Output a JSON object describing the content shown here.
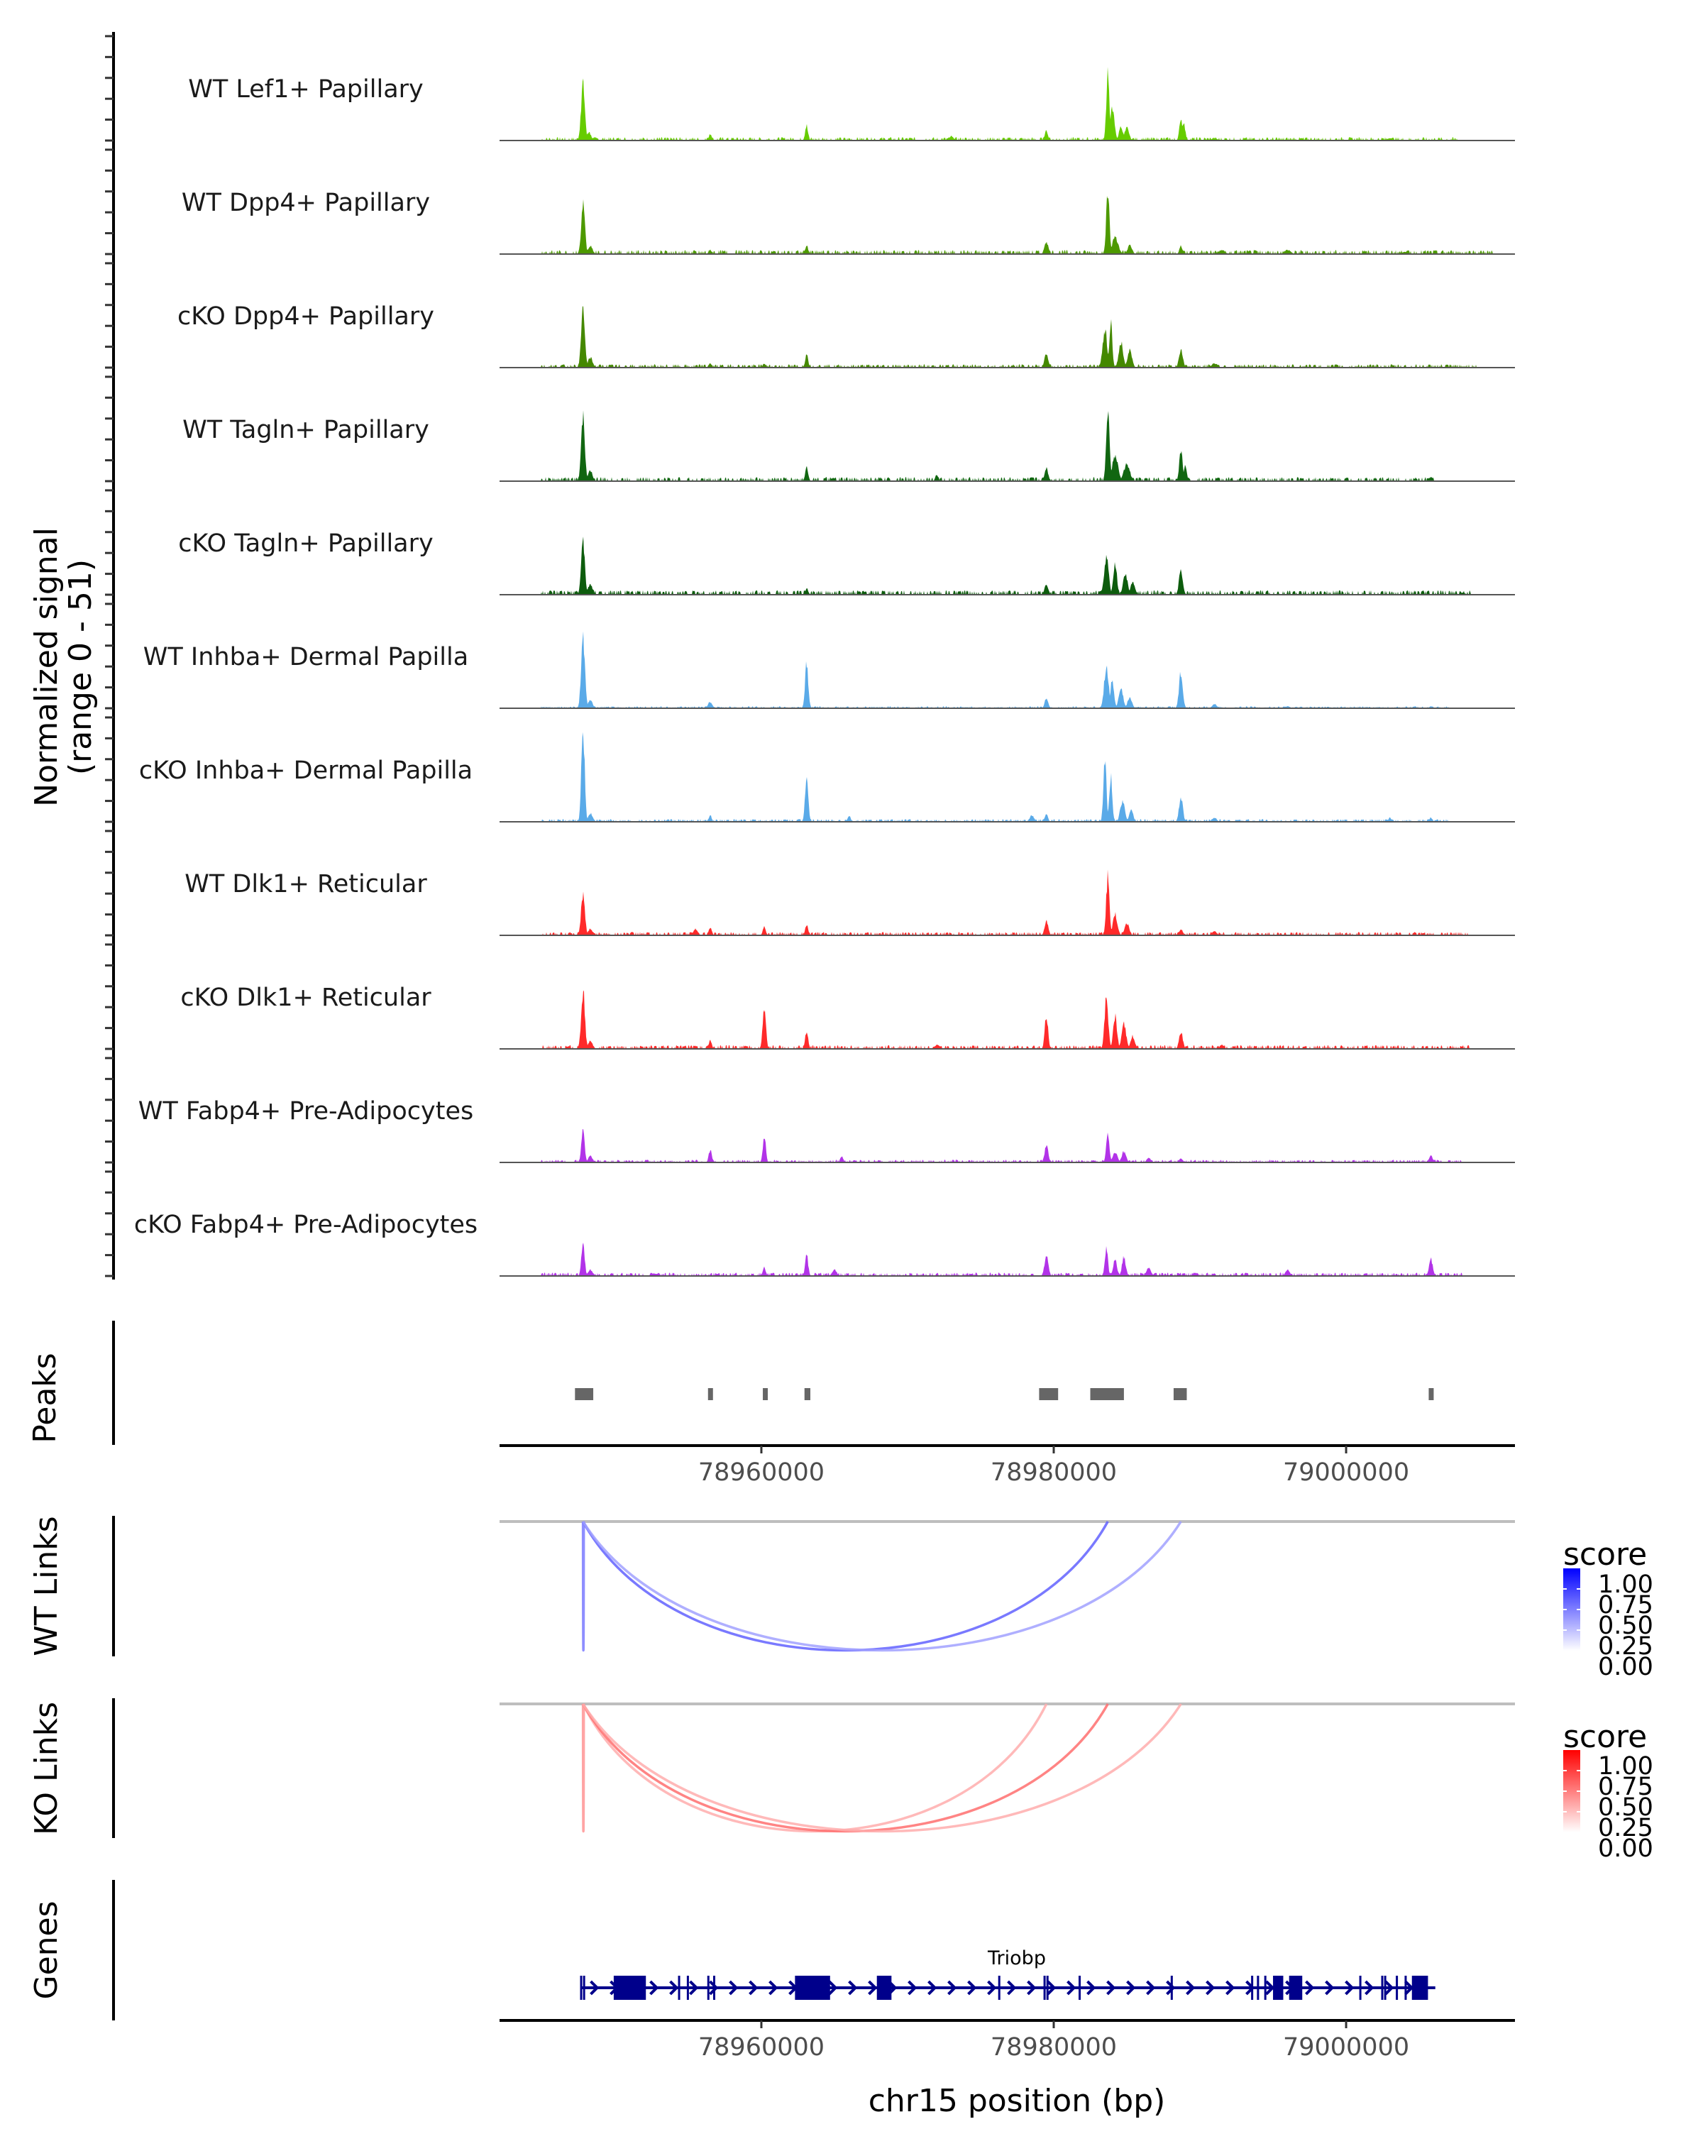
{
  "chart_data": {
    "type": "area",
    "title": "",
    "chromosome": "chr15",
    "xlabel": "chr15 position (bp)",
    "xlim": [
      78942090,
      79011550
    ],
    "xticks": [
      78960000,
      78980000,
      79000000
    ],
    "xtick_labels": [
      "78960000",
      "78980000",
      "79000000"
    ],
    "coverage": {
      "ylabel_line1": "Normalized signal",
      "ylabel_line2": "(range 0 - 51)",
      "ylim": [
        0,
        51
      ],
      "tick_step": 10,
      "tracks": [
        {
          "name": "WT Lef1+ Papillary",
          "color": "#66cc00",
          "peaks": [
            [
              78947800,
              27,
              250
            ],
            [
              78948200,
              4,
              300
            ],
            [
              78956500,
              3,
              200
            ],
            [
              78963100,
              7,
              200
            ],
            [
              78973000,
              2,
              300
            ],
            [
              78979500,
              5,
              200
            ],
            [
              78983700,
              33,
              200
            ],
            [
              78984000,
              16,
              300
            ],
            [
              78984600,
              7,
              250
            ],
            [
              78985000,
              6,
              300
            ],
            [
              78988700,
              11,
              200
            ],
            [
              78988900,
              8,
              200
            ],
            [
              78991000,
              1,
              400
            ],
            [
              79003000,
              1,
              400
            ]
          ],
          "noise": [
            [
              78945000,
              79008000,
              1
            ]
          ]
        },
        {
          "name": "WT Dpp4+ Papillary",
          "color": "#4d9900",
          "peaks": [
            [
              78947800,
              24,
              250
            ],
            [
              78948300,
              4,
              300
            ],
            [
              78956500,
              2,
              200
            ],
            [
              78963100,
              4,
              200
            ],
            [
              78979500,
              6,
              250
            ],
            [
              78983700,
              30,
              220
            ],
            [
              78984200,
              8,
              400
            ],
            [
              78985200,
              4,
              300
            ],
            [
              78988700,
              4,
              200
            ],
            [
              78991500,
              2,
              400
            ],
            [
              78996000,
              2,
              400
            ],
            [
              79004000,
              1,
              400
            ]
          ],
          "noise": [
            [
              78945000,
              79010000,
              1.2
            ]
          ]
        },
        {
          "name": "cKO Dpp4+ Papillary",
          "color": "#448800",
          "peaks": [
            [
              78947800,
              28,
              250
            ],
            [
              78948300,
              5,
              300
            ],
            [
              78956500,
              2,
              200
            ],
            [
              78960200,
              2,
              200
            ],
            [
              78963100,
              6,
              200
            ],
            [
              78979500,
              7,
              250
            ],
            [
              78983500,
              18,
              300
            ],
            [
              78983900,
              22,
              200
            ],
            [
              78984600,
              12,
              300
            ],
            [
              78985200,
              8,
              300
            ],
            [
              78988700,
              9,
              250
            ],
            [
              78991000,
              2,
              400
            ]
          ],
          "noise": [
            [
              78945000,
              79009000,
              1
            ]
          ]
        },
        {
          "name": "WT Tagln+ Papillary",
          "color": "#116611",
          "peaks": [
            [
              78947800,
              30,
              250
            ],
            [
              78948300,
              5,
              300
            ],
            [
              78963100,
              7,
              200
            ],
            [
              78972000,
              3,
              200
            ],
            [
              78979500,
              6,
              250
            ],
            [
              78983700,
              35,
              220
            ],
            [
              78984200,
              12,
              400
            ],
            [
              78985000,
              8,
              400
            ],
            [
              78988700,
              15,
              220
            ],
            [
              78989000,
              8,
              200
            ],
            [
              79005800,
              2,
              200
            ]
          ],
          "noise": [
            [
              78945000,
              79006000,
              1.2
            ]
          ]
        },
        {
          "name": "cKO Tagln+ Papillary",
          "color": "#0d5c0d",
          "peaks": [
            [
              78947800,
              25,
              250
            ],
            [
              78948300,
              5,
              300
            ],
            [
              78963100,
              3,
              200
            ],
            [
              78979500,
              5,
              250
            ],
            [
              78983600,
              18,
              300
            ],
            [
              78984200,
              14,
              250
            ],
            [
              78984900,
              10,
              300
            ],
            [
              78985400,
              6,
              300
            ],
            [
              78988700,
              12,
              250
            ],
            [
              79008000,
              1,
              300
            ]
          ],
          "noise": [
            [
              78945000,
              79008500,
              1.3
            ]
          ]
        },
        {
          "name": "WT Inhba+ Dermal Papilla",
          "color": "#5aaae8",
          "peaks": [
            [
              78947800,
              35,
              250
            ],
            [
              78948300,
              4,
              300
            ],
            [
              78956500,
              3,
              300
            ],
            [
              78963100,
              21,
              220
            ],
            [
              78979500,
              5,
              220
            ],
            [
              78983600,
              20,
              300
            ],
            [
              78984000,
              13,
              250
            ],
            [
              78984600,
              9,
              300
            ],
            [
              78985200,
              5,
              300
            ],
            [
              78988700,
              18,
              250
            ],
            [
              78991000,
              2,
              300
            ],
            [
              78996000,
              1,
              300
            ],
            [
              79005800,
              1,
              200
            ]
          ],
          "noise": [
            [
              78945000,
              79007000,
              0.6
            ]
          ]
        },
        {
          "name": "cKO Inhba+ Dermal Papilla",
          "color": "#5aaae8",
          "peaks": [
            [
              78947800,
              46,
              220
            ],
            [
              78948300,
              4,
              300
            ],
            [
              78956500,
              3,
              200
            ],
            [
              78963100,
              20,
              220
            ],
            [
              78966000,
              3,
              200
            ],
            [
              78978500,
              3,
              300
            ],
            [
              78979500,
              4,
              200
            ],
            [
              78983500,
              30,
              200
            ],
            [
              78983900,
              22,
              200
            ],
            [
              78984700,
              10,
              300
            ],
            [
              78985300,
              6,
              250
            ],
            [
              78988700,
              12,
              250
            ],
            [
              78991000,
              2,
              300
            ],
            [
              79003000,
              2,
              200
            ],
            [
              79005800,
              2,
              200
            ]
          ],
          "noise": [
            [
              78945000,
              79007000,
              0.8
            ]
          ]
        },
        {
          "name": "WT Dlk1+ Reticular",
          "color": "#ff2a2a",
          "peaks": [
            [
              78947800,
              20,
              250
            ],
            [
              78948300,
              3,
              300
            ],
            [
              78955500,
              3,
              300
            ],
            [
              78956500,
              4,
              200
            ],
            [
              78960200,
              4,
              200
            ],
            [
              78963100,
              5,
              200
            ],
            [
              78979500,
              7,
              250
            ],
            [
              78983700,
              28,
              220
            ],
            [
              78984200,
              10,
              300
            ],
            [
              78985000,
              6,
              300
            ],
            [
              78988700,
              3,
              250
            ],
            [
              78991000,
              2,
              300
            ]
          ],
          "noise": [
            [
              78945000,
              79008500,
              1
            ]
          ]
        },
        {
          "name": "cKO Dlk1+ Reticular",
          "color": "#ff2a2a",
          "peaks": [
            [
              78947800,
              28,
              250
            ],
            [
              78948300,
              4,
              300
            ],
            [
              78956500,
              4,
              200
            ],
            [
              78960200,
              20,
              220
            ],
            [
              78963100,
              9,
              200
            ],
            [
              78972000,
              2,
              300
            ],
            [
              78979500,
              16,
              220
            ],
            [
              78983600,
              24,
              250
            ],
            [
              78984200,
              16,
              250
            ],
            [
              78984800,
              12,
              300
            ],
            [
              78985400,
              6,
              300
            ],
            [
              78988700,
              8,
              250
            ],
            [
              78991500,
              2,
              300
            ]
          ],
          "noise": [
            [
              78945000,
              79008500,
              1.1
            ]
          ]
        },
        {
          "name": "WT Fabp4+ Pre-Adipocytes",
          "color": "#b233e8",
          "peaks": [
            [
              78947800,
              16,
              220
            ],
            [
              78948300,
              3,
              300
            ],
            [
              78956500,
              6,
              200
            ],
            [
              78960200,
              13,
              200
            ],
            [
              78965500,
              3,
              200
            ],
            [
              78979500,
              8,
              250
            ],
            [
              78983700,
              13,
              220
            ],
            [
              78984200,
              5,
              300
            ],
            [
              78984800,
              5,
              300
            ],
            [
              78986500,
              2,
              300
            ],
            [
              78988700,
              2,
              250
            ],
            [
              79005800,
              3,
              250
            ]
          ],
          "noise": [
            [
              78945000,
              79008000,
              0.8
            ]
          ]
        },
        {
          "name": "cKO Fabp4+ Pre-Adipocytes",
          "color": "#b233e8",
          "peaks": [
            [
              78947800,
              15,
              220
            ],
            [
              78948300,
              3,
              300
            ],
            [
              78960200,
              4,
              200
            ],
            [
              78963100,
              10,
              200
            ],
            [
              78965000,
              3,
              300
            ],
            [
              78979500,
              10,
              250
            ],
            [
              78983600,
              14,
              200
            ],
            [
              78984200,
              8,
              250
            ],
            [
              78984800,
              9,
              250
            ],
            [
              78986500,
              4,
              300
            ],
            [
              78996000,
              3,
              300
            ],
            [
              79005800,
              8,
              250
            ]
          ],
          "noise": [
            [
              78945000,
              79008000,
              1
            ]
          ]
        }
      ]
    },
    "peaks": {
      "label": "Peaks",
      "color": "#666666",
      "regions": [
        [
          78947250,
          78948500
        ],
        [
          78956350,
          78956650
        ],
        [
          78960100,
          78960400
        ],
        [
          78962950,
          78963350
        ],
        [
          78979000,
          78980300
        ],
        [
          78982500,
          78984800
        ],
        [
          78988200,
          78989100
        ],
        [
          79005650,
          79005950
        ]
      ]
    },
    "links_wt": {
      "label": "WT Links",
      "links": [
        {
          "start": 78947800,
          "end": 78947850,
          "score": 0.4
        },
        {
          "start": 78947800,
          "end": 78983700,
          "score": 0.5
        },
        {
          "start": 78947800,
          "end": 78988700,
          "score": 0.25
        }
      ]
    },
    "links_ko": {
      "label": "KO Links",
      "links": [
        {
          "start": 78947800,
          "end": 78947850,
          "score": 0.3
        },
        {
          "start": 78947800,
          "end": 78979500,
          "score": 0.2
        },
        {
          "start": 78947800,
          "end": 78983700,
          "score": 0.45
        },
        {
          "start": 78947800,
          "end": 78988700,
          "score": 0.2
        }
      ]
    },
    "legends": [
      {
        "title": "score",
        "labels": [
          "1.00",
          "0.75",
          "0.50",
          "0.25",
          "0.00"
        ],
        "low_color": "#ffffff",
        "high_color": "#0000ff"
      },
      {
        "title": "score",
        "labels": [
          "1.00",
          "0.75",
          "0.50",
          "0.25",
          "0.00"
        ],
        "low_color": "#ffffff",
        "high_color": "#ff0000"
      }
    ],
    "genes": {
      "label": "Genes",
      "color": "#00008b",
      "gene_name": "Triobp",
      "strand": "+",
      "start": 78947600,
      "end": 79006100,
      "exons": [
        [
          78947600,
          78947700
        ],
        [
          78947800,
          78947900
        ],
        [
          78949900,
          78952100
        ],
        [
          78954300,
          78954400
        ],
        [
          78954900,
          78955000
        ],
        [
          78956300,
          78956400
        ],
        [
          78956700,
          78956800
        ],
        [
          78962300,
          78964700
        ],
        [
          78967900,
          78968900
        ],
        [
          78976200,
          78976300
        ],
        [
          78979300,
          78979400
        ],
        [
          78979500,
          78979600
        ],
        [
          78981700,
          78981800
        ],
        [
          78988000,
          78988100
        ],
        [
          78993500,
          78993600
        ],
        [
          78993900,
          78994000
        ],
        [
          78994400,
          78994500
        ],
        [
          78995000,
          78995700
        ],
        [
          78996100,
          78997000
        ],
        [
          79000900,
          79001000
        ],
        [
          79002400,
          79002500
        ],
        [
          79002600,
          79002700
        ],
        [
          79003400,
          79003500
        ],
        [
          79004000,
          79004100
        ],
        [
          79004500,
          79005600
        ]
      ]
    }
  }
}
